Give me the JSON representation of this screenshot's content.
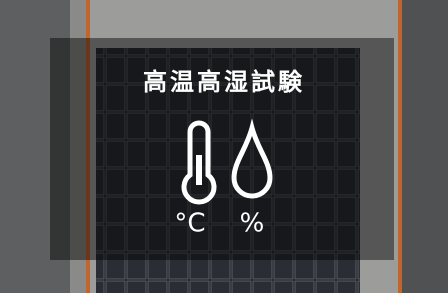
{
  "title": "高温高湿試験",
  "labels": [
    "°C",
    "%"
  ]
}
